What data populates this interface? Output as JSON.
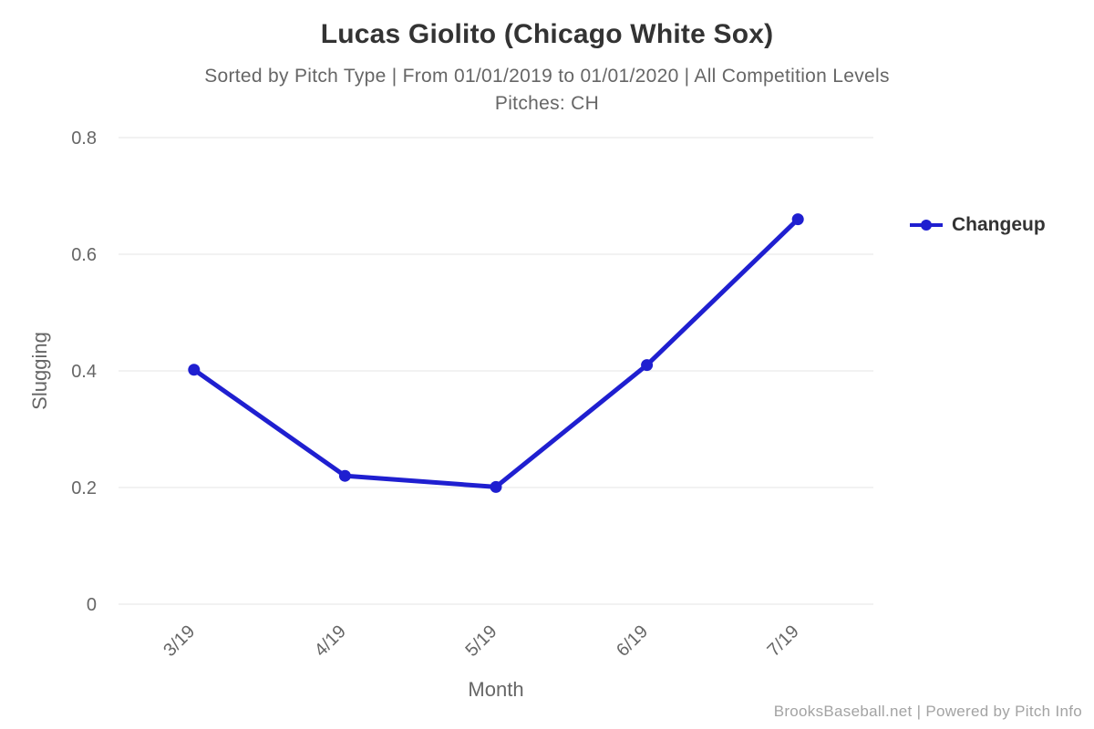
{
  "colors": {
    "series": "#1f1fd0",
    "grid": "#e6e6e6",
    "muted_text": "#666666",
    "title_text": "#333333",
    "credits_text": "#a3a3a3",
    "background": "#ffffff"
  },
  "chart_data": {
    "type": "line",
    "title": "Lucas Giolito (Chicago White Sox)",
    "subtitle": "Sorted by Pitch Type | From 01/01/2019 to 01/01/2020 | All Competition Levels",
    "subtitle2": "Pitches: CH",
    "categories": [
      "3/19",
      "4/19",
      "5/19",
      "6/19",
      "7/19"
    ],
    "series": [
      {
        "name": "Changeup",
        "values": [
          0.402,
          0.22,
          0.201,
          0.41,
          0.66
        ]
      }
    ],
    "xlabel": "Month",
    "ylabel": "Slugging",
    "ylim": [
      0,
      0.8
    ],
    "yticks": [
      "0",
      "0.2",
      "0.4",
      "0.6",
      "0.8"
    ],
    "grid": "horizontal-only",
    "legend_position": "right",
    "credits": "BrooksBaseball.net | Powered by Pitch Info"
  }
}
